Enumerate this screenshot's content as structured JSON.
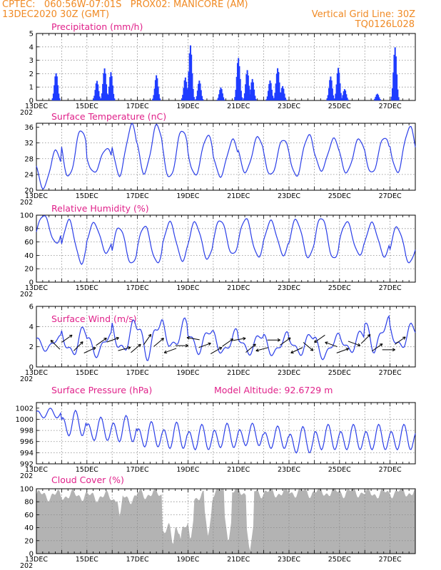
{
  "header": {
    "line1_left": "CPTEC:   060:56W-07:01S   PROX02: MANICORE (AM)",
    "line2_left": "13DEC2020 30Z (GMT)",
    "line2_right": "Vertical Grid Line: 30Z",
    "line3_right": "TQ0126L028"
  },
  "x_axis": {
    "labels": [
      "13DEC",
      "15DEC",
      "17DEC",
      "19DEC",
      "21DEC",
      "23DEC",
      "25DEC",
      "27DEC"
    ],
    "partial_label": "202",
    "days": 15
  },
  "chart_data": [
    {
      "type": "bar",
      "title": "Precipitation (mm/h)",
      "ylim": [
        0,
        5
      ],
      "yticks": [
        0,
        1,
        2,
        3,
        4,
        5
      ],
      "color": "#1f3cff",
      "events": [
        {
          "day": 0.78,
          "peak": 2.7
        },
        {
          "day": 2.4,
          "peak": 1.6
        },
        {
          "day": 2.7,
          "peak": 2.4
        },
        {
          "day": 2.95,
          "peak": 2.2
        },
        {
          "day": 4.75,
          "peak": 2.3
        },
        {
          "day": 5.9,
          "peak": 2.0
        },
        {
          "day": 6.1,
          "peak": 4.2
        },
        {
          "day": 6.45,
          "peak": 1.5
        },
        {
          "day": 7.3,
          "peak": 1.1
        },
        {
          "day": 8.0,
          "peak": 4.0
        },
        {
          "day": 8.35,
          "peak": 2.4
        },
        {
          "day": 8.55,
          "peak": 1.6
        },
        {
          "day": 9.25,
          "peak": 1.6
        },
        {
          "day": 9.55,
          "peak": 3.1
        },
        {
          "day": 9.75,
          "peak": 1.2
        },
        {
          "day": 11.65,
          "peak": 1.8
        },
        {
          "day": 11.95,
          "peak": 2.5
        },
        {
          "day": 12.2,
          "peak": 1.0
        },
        {
          "day": 13.5,
          "peak": 0.6
        },
        {
          "day": 14.2,
          "peak": 4.1
        }
      ]
    },
    {
      "type": "line",
      "title": "Surface Temperature (nC)",
      "ylim": [
        20,
        37
      ],
      "yticks": [
        20,
        24,
        28,
        32,
        36
      ],
      "color": "#2a3ee8",
      "daily_min": [
        20.6,
        23.4,
        24.5,
        23.9,
        24.4,
        23.1,
        23.8,
        23.6,
        24.6,
        23.8,
        23.6,
        25.1,
        24.5,
        24.3,
        24.6
      ],
      "daily_max": [
        30.0,
        35.4,
        30.6,
        36.5,
        36.5,
        35.4,
        33.9,
        32.7,
        33.5,
        33.0,
        34.0,
        33.0,
        33.0,
        33.5,
        36.0
      ]
    },
    {
      "type": "line",
      "title": "Relative Humidity (%)",
      "ylim": [
        0,
        100
      ],
      "yticks": [
        0,
        20,
        40,
        60,
        80,
        100
      ],
      "color": "#2a3ee8",
      "daily_max": [
        100,
        92,
        88,
        82,
        84,
        89,
        89,
        93,
        95,
        91,
        93,
        97,
        90,
        88,
        82
      ],
      "daily_min": [
        58,
        29,
        44,
        27,
        29,
        33,
        35,
        41,
        38,
        41,
        37,
        34,
        41,
        39,
        29
      ]
    },
    {
      "type": "line",
      "title": "Surface Wind (m/s)",
      "ylim": [
        0,
        6
      ],
      "yticks": [
        0,
        2,
        4,
        6
      ],
      "color": "#2a3ee8",
      "daily_max": [
        3.2,
        4.2,
        3.6,
        4.8,
        5.3,
        4.9,
        4.2,
        3.8,
        3.6,
        3.5,
        3.6,
        3.4,
        3.8,
        5.2,
        4.5
      ],
      "daily_min": [
        1.5,
        0.8,
        0.9,
        1.0,
        0.6,
        1.4,
        1.2,
        1.0,
        1.1,
        0.9,
        1.0,
        0.6,
        1.2,
        1.3,
        1.5
      ],
      "arrow_directions_deg": [
        135,
        35,
        45,
        25,
        35,
        20,
        15,
        40,
        55,
        40,
        200,
        0,
        170,
        20,
        30,
        35,
        10,
        40,
        195,
        0,
        35,
        205,
        320,
        215,
        160,
        20,
        340,
        45,
        35,
        0,
        35
      ]
    },
    {
      "type": "line",
      "title": "Surface Pressure (hPa)",
      "annotation": "Model Altitude: 92.6729 m",
      "ylim": [
        992,
        1003
      ],
      "yticks": [
        992,
        994,
        996,
        998,
        1000,
        1002
      ],
      "color": "#2a3ee8",
      "base": [
        1001.0,
        999.0,
        998.0,
        998.0,
        997.0,
        996.8,
        996.5,
        996.8,
        997.0,
        996.5,
        996.0,
        996.5,
        996.5,
        996.5,
        996.5,
        996.5
      ],
      "amplitude": [
        1.0,
        2.6,
        2.4,
        2.7,
        2.6,
        2.7,
        2.6,
        2.5,
        2.3,
        2.3,
        2.7,
        2.6,
        2.6,
        2.6,
        2.6,
        2.6
      ]
    },
    {
      "type": "area",
      "title": "Cloud Cover (%)",
      "ylim": [
        0,
        100
      ],
      "yticks": [
        0,
        20,
        40,
        60,
        80,
        100
      ],
      "color": "#b3b3b3",
      "daily_mean": [
        90,
        90,
        88,
        86,
        92,
        40,
        88,
        96,
        95,
        94,
        95,
        95,
        95,
        93,
        95
      ],
      "dips": [
        {
          "day": 5.4,
          "low": 10
        },
        {
          "day": 5.7,
          "low": 20
        },
        {
          "day": 6.1,
          "low": 18
        },
        {
          "day": 6.8,
          "low": 25
        },
        {
          "day": 7.6,
          "low": 15
        },
        {
          "day": 8.45,
          "low": 2
        },
        {
          "day": 3.3,
          "low": 55
        }
      ]
    }
  ]
}
